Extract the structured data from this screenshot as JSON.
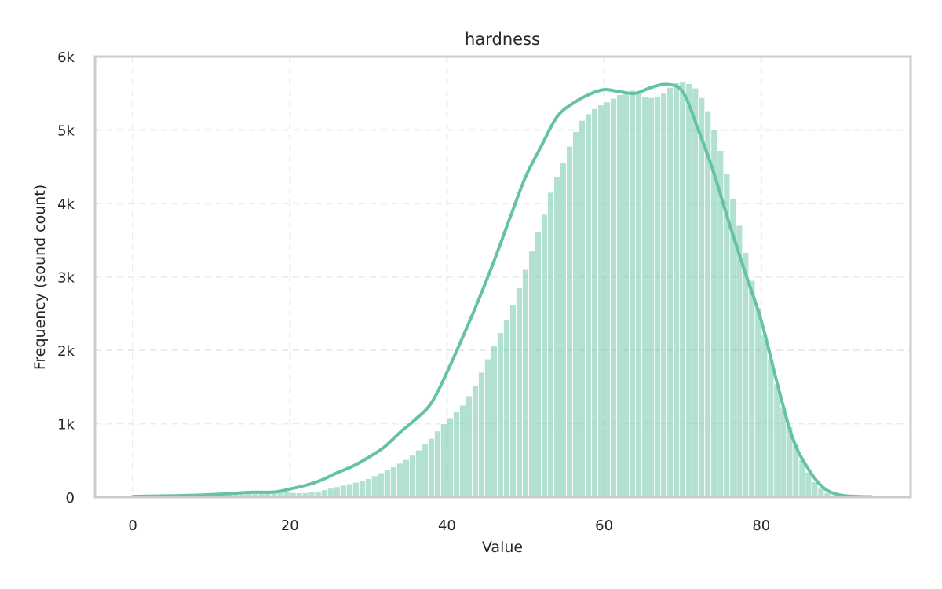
{
  "chart_data": {
    "type": "bar",
    "title": "hardness",
    "xlabel": "Value",
    "ylabel": "Frequency (sound count)",
    "xlim": [
      -4.8,
      99
    ],
    "ylim": [
      0,
      6000
    ],
    "x_ticks": [
      0,
      20,
      40,
      60,
      80
    ],
    "x_tick_labels": [
      "0",
      "20",
      "40",
      "60",
      "80"
    ],
    "y_ticks": [
      0,
      1000,
      2000,
      3000,
      4000,
      5000,
      6000
    ],
    "y_tick_labels": [
      "0",
      "1k",
      "2k",
      "3k",
      "4k",
      "5k",
      "6k"
    ],
    "grid": true,
    "legend": "none",
    "colors": {
      "bar_fill": "#66c2a5",
      "kde_line": "#66c2a5",
      "frame": "#cccccc",
      "grid": "#ebebeb",
      "text": "#262626"
    },
    "series": [
      {
        "kind": "histogram",
        "bin_width": 0.8,
        "bin_start": 0,
        "values": [
          10,
          10,
          10,
          10,
          10,
          10,
          10,
          10,
          10,
          10,
          20,
          20,
          20,
          20,
          20,
          40,
          40,
          40,
          50,
          50,
          60,
          60,
          70,
          70,
          70,
          60,
          60,
          60,
          70,
          80,
          100,
          120,
          140,
          160,
          180,
          200,
          220,
          250,
          290,
          330,
          370,
          410,
          460,
          510,
          570,
          640,
          720,
          800,
          900,
          1000,
          1080,
          1160,
          1250,
          1380,
          1520,
          1700,
          1880,
          2060,
          2240,
          2420,
          2620,
          2850,
          3100,
          3350,
          3620,
          3850,
          4150,
          4360,
          4560,
          4780,
          4980,
          5130,
          5220,
          5290,
          5340,
          5380,
          5430,
          5480,
          5520,
          5540,
          5500,
          5460,
          5440,
          5450,
          5500,
          5580,
          5640,
          5660,
          5630,
          5570,
          5440,
          5260,
          5010,
          4720,
          4400,
          4060,
          3700,
          3330,
          2950,
          2580,
          2220,
          1880,
          1540,
          1230,
          960,
          720,
          510,
          340,
          210,
          120,
          60,
          30,
          10,
          10
        ]
      },
      {
        "kind": "kde",
        "x": [
          0,
          3,
          6,
          9,
          12,
          15,
          18,
          20,
          22,
          24,
          26,
          28,
          30,
          32,
          34,
          36,
          38,
          40,
          42,
          44,
          46,
          48,
          50,
          52,
          54,
          56,
          58,
          60,
          62,
          64,
          66,
          68,
          70,
          72,
          74,
          76,
          78,
          80,
          82,
          84,
          86,
          88,
          90,
          92,
          94
        ],
        "y": [
          10,
          15,
          20,
          30,
          45,
          65,
          70,
          110,
          160,
          230,
          330,
          420,
          540,
          680,
          880,
          1060,
          1280,
          1700,
          2180,
          2680,
          3220,
          3800,
          4360,
          4780,
          5180,
          5360,
          5480,
          5550,
          5520,
          5500,
          5580,
          5620,
          5520,
          5000,
          4400,
          3700,
          3040,
          2400,
          1560,
          800,
          380,
          120,
          30,
          10,
          5
        ]
      }
    ]
  }
}
